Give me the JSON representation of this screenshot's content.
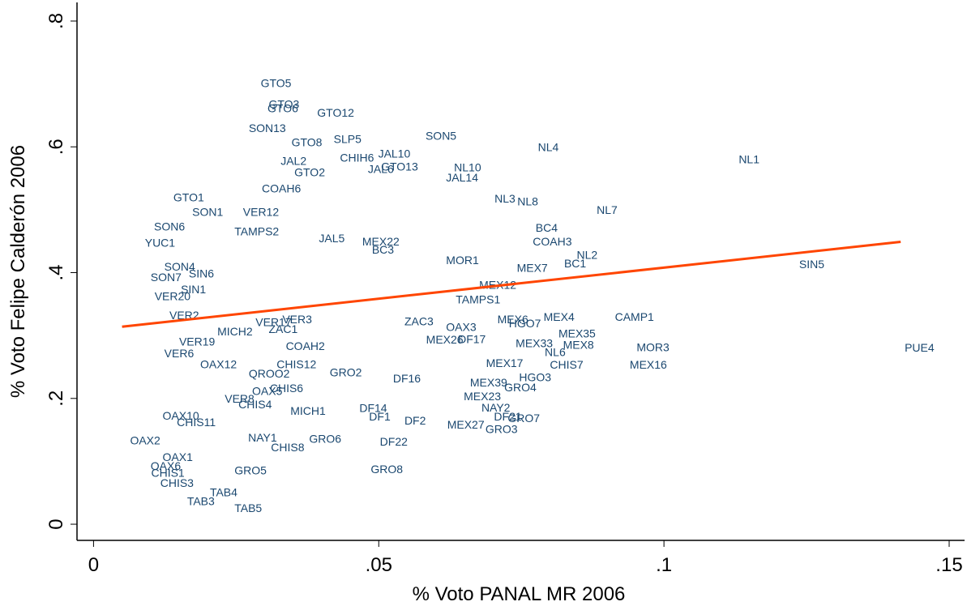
{
  "chart_data": {
    "type": "scatter",
    "x_label": "% Voto PANAL MR 2006",
    "y_label": "% Voto Felipe Calderón 2006",
    "xlim": [
      -0.0029,
      0.1527
    ],
    "ylim": [
      -0.0257,
      0.8296
    ],
    "xticks": [
      0,
      {
        "value": 0.05,
        "label": ".05"
      },
      {
        "value": 0.1,
        "label": ".1"
      },
      {
        "value": 0.15,
        "label": ".15"
      }
    ],
    "yticks": [
      0,
      {
        "value": 0.2,
        "label": ".2"
      },
      {
        "value": 0.4,
        "label": ".4"
      },
      {
        "value": 0.6,
        "label": ".6"
      },
      {
        "value": 0.8,
        "label": ".8"
      }
    ],
    "label_color": "#1a476f",
    "fit_color": "#ff4500",
    "fit": {
      "x": [
        0.005,
        0.1415
      ],
      "y": [
        0.314,
        0.449
      ]
    },
    "points": {
      "labels": [
        "GTO5",
        "GTO3",
        "GTO6",
        "GTO12",
        "SON13",
        "GTO8",
        "SLP5",
        "SON5",
        "NL4",
        "NL1",
        "JAL10",
        "CHIH6",
        "GTO13",
        "JAL6",
        "JAL2",
        "GTO2",
        "NL10",
        "JAL14",
        "COAH6",
        "GTO1",
        "SON1",
        "VER12",
        "NL3",
        "NL8",
        "NL7",
        "SON6",
        "TAMPS2",
        "JAL5",
        "BC3",
        "MEX22",
        "COAH3",
        "BC4",
        "YUC1",
        "NL2",
        "BC1",
        "SIN5",
        "MEX7",
        "MOR1",
        "SON4",
        "SIN6",
        "SON7",
        "VER20",
        "SIN1",
        "MEX12",
        "TAMPS1",
        "VER2",
        "MEX6",
        "MEX4",
        "CAMP1",
        "HGO7",
        "MEX35",
        "MEX8",
        "MEX33",
        "MOR3",
        "PUE4",
        "NL6",
        "CHIS7",
        "MEX16",
        "VER19",
        "MICH2",
        "VER17",
        "ZAC1",
        "VER3",
        "ZAC3",
        "OAX3",
        "DF17",
        "MEX26",
        "MEX17",
        "HGO3",
        "GRO4",
        "MEX39",
        "MEX23",
        "NAY2",
        "DF21",
        "GRO7",
        "GRO3",
        "MEX27",
        "DF2",
        "DF1",
        "DF14",
        "DF22",
        "GRO8",
        "DF16",
        "VER6",
        "OAX12",
        "CHIS12",
        "COAH2",
        "QROO2",
        "GRO2",
        "CHIS6",
        "OAX5",
        "VER8",
        "CHIS4",
        "MICH1",
        "OAX10",
        "CHIS11",
        "OAX2",
        "NAY1",
        "CHIS8",
        "GRO6",
        "OAX1",
        "OAX6",
        "CHIS3",
        "GRO5",
        "TAB4",
        "TAB3",
        "TAB5",
        "CHIS1"
      ],
      "x": [
        0.0293,
        0.0307,
        0.0305,
        0.0392,
        0.0272,
        0.0347,
        0.0421,
        0.0582,
        0.0779,
        0.1131,
        0.0499,
        0.0432,
        0.0504,
        0.0481,
        0.0328,
        0.0352,
        0.0632,
        0.0618,
        0.0295,
        0.014,
        0.0173,
        0.0262,
        0.0703,
        0.0743,
        0.0882,
        0.0106,
        0.0247,
        0.0395,
        0.0488,
        0.0471,
        0.077,
        0.0775,
        0.009,
        0.0847,
        0.0825,
        0.1237,
        0.0742,
        0.0618,
        0.0124,
        0.0167,
        0.01,
        0.0107,
        0.0153,
        0.0676,
        0.0635,
        0.0133,
        0.0708,
        0.0789,
        0.0914,
        0.0728,
        0.0815,
        0.0823,
        0.074,
        0.0952,
        0.1422,
        0.0791,
        0.08,
        0.094,
        0.015,
        0.0217,
        0.0284,
        0.0307,
        0.0331,
        0.0545,
        0.0618,
        0.0639,
        0.0583,
        0.0688,
        0.0746,
        0.072,
        0.066,
        0.0649,
        0.068,
        0.0702,
        0.0726,
        0.0687,
        0.062,
        0.0545,
        0.0483,
        0.0466,
        0.0502,
        0.0486,
        0.0525,
        0.0124,
        0.0187,
        0.0321,
        0.0337,
        0.0272,
        0.0414,
        0.0309,
        0.0278,
        0.023,
        0.0254,
        0.0345,
        0.0121,
        0.0146,
        0.0064,
        0.0271,
        0.0311,
        0.0378,
        0.0121,
        0.01,
        0.0117,
        0.0247,
        0.0204,
        0.0164,
        0.0247,
        0.0101
      ],
      "y": [
        0.7,
        0.666,
        0.66,
        0.653,
        0.628,
        0.606,
        0.611,
        0.616,
        0.598,
        0.579,
        0.588,
        0.581,
        0.567,
        0.563,
        0.576,
        0.558,
        0.566,
        0.55,
        0.532,
        0.518,
        0.495,
        0.495,
        0.516,
        0.512,
        0.498,
        0.472,
        0.464,
        0.453,
        0.435,
        0.448,
        0.448,
        0.47,
        0.446,
        0.427,
        0.413,
        0.412,
        0.406,
        0.418,
        0.408,
        0.397,
        0.391,
        0.361,
        0.372,
        0.379,
        0.356,
        0.331,
        0.324,
        0.328,
        0.328,
        0.318,
        0.302,
        0.284,
        0.286,
        0.28,
        0.279,
        0.272,
        0.252,
        0.252,
        0.289,
        0.305,
        0.32,
        0.309,
        0.324,
        0.321,
        0.312,
        0.293,
        0.292,
        0.255,
        0.232,
        0.216,
        0.224,
        0.202,
        0.184,
        0.17,
        0.167,
        0.15,
        0.157,
        0.163,
        0.17,
        0.183,
        0.13,
        0.086,
        0.23,
        0.27,
        0.253,
        0.253,
        0.282,
        0.238,
        0.24,
        0.215,
        0.21,
        0.198,
        0.189,
        0.179,
        0.171,
        0.161,
        0.132,
        0.136,
        0.121,
        0.134,
        0.105,
        0.091,
        0.064,
        0.084,
        0.049,
        0.035,
        0.024,
        0.08
      ]
    }
  }
}
